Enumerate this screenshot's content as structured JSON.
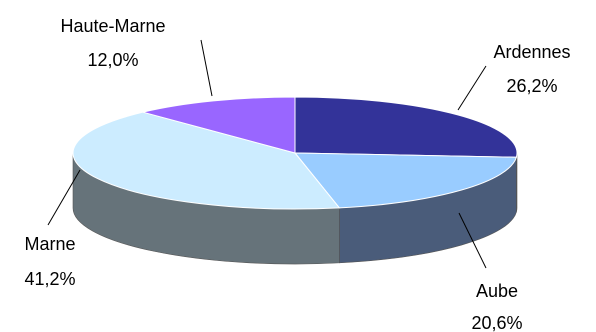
{
  "chart_data": {
    "type": "pie",
    "title": "",
    "three_d": true,
    "legend": "none",
    "slices": [
      {
        "category": "Ardennes",
        "value": 26.2,
        "label": "26,2%",
        "color": "#333399"
      },
      {
        "category": "Aube",
        "value": 20.6,
        "label": "20,6%",
        "color": "#99CCFF"
      },
      {
        "category": "Marne",
        "value": 41.2,
        "label": "41,2%",
        "color": "#CCECFF"
      },
      {
        "category": "Haute-Marne",
        "value": 12.0,
        "label": "12,0%",
        "color": "#9966FF"
      }
    ]
  }
}
